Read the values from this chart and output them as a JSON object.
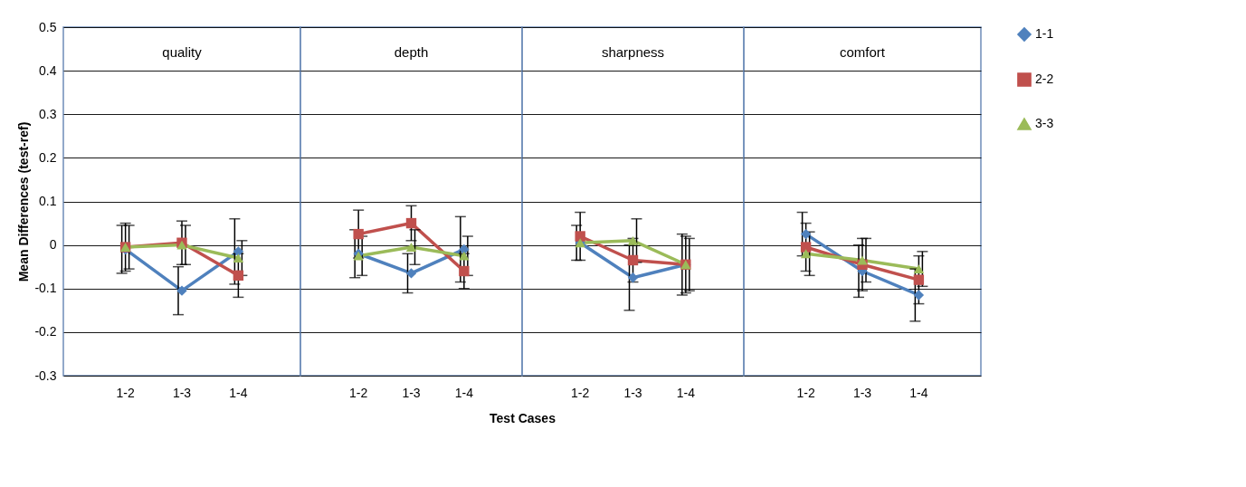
{
  "chart_data": [
    {
      "type": "line",
      "title": "quality",
      "ylabel": "Mean Differences (test-ref)",
      "categories": [
        "1-2",
        "1-3",
        "1-4"
      ],
      "ylim": [
        -0.3,
        0.5
      ],
      "yticks": [
        -0.3,
        -0.2,
        -0.1,
        {
          "value": 0,
          "label": "0"
        },
        0.1,
        0.2,
        0.3,
        0.4,
        0.5
      ],
      "grid": "y",
      "series": [
        {
          "color": "#4f81bd",
          "marker": "diamond",
          "values": [
            -0.01,
            -0.105,
            -0.015
          ],
          "errors": [
            0.055,
            0.055,
            0.075
          ]
        },
        {
          "color": "#c0504d",
          "marker": "square",
          "values": [
            -0.005,
            0.005,
            -0.07
          ],
          "errors": [
            0.055,
            0.05,
            0.05
          ]
        },
        {
          "color": "#9bbb59",
          "marker": "triangle",
          "values": [
            -0.005,
            0,
            -0.03
          ],
          "errors": [
            0.05,
            0.045,
            0.04
          ]
        }
      ]
    },
    {
      "type": "line",
      "title": "depth",
      "xlabel": "Test Cases",
      "categories": [
        "1-2",
        "1-3",
        "1-4"
      ],
      "ylim": [
        -0.3,
        0.5
      ],
      "yticks": [
        -0.3,
        -0.2,
        -0.1,
        0,
        0.1,
        0.2,
        0.3,
        0.4,
        0.5
      ],
      "grid": "y",
      "tick_labels": "x",
      "series": [
        {
          "color": "#4f81bd",
          "marker": "diamond",
          "values": [
            -0.02,
            -0.065,
            -0.01
          ],
          "errors": [
            0.055,
            0.045,
            0.075
          ]
        },
        {
          "color": "#c0504d",
          "marker": "square",
          "values": [
            0.025,
            0.05,
            -0.06
          ],
          "errors": [
            0.055,
            0.04,
            0.04
          ]
        },
        {
          "color": "#9bbb59",
          "marker": "triangle",
          "values": [
            -0.025,
            -0.005,
            -0.025
          ],
          "errors": [
            0.045,
            0.04,
            0.045
          ]
        }
      ]
    },
    {
      "type": "line",
      "title": "sharpness",
      "categories": [
        "1-2",
        "1-3",
        "1-4"
      ],
      "ylim": [
        -0.3,
        0.5
      ],
      "yticks": [
        -0.3,
        -0.2,
        -0.1,
        0,
        0.1,
        0.2,
        0.3,
        0.4,
        0.5
      ],
      "grid": "y",
      "tick_labels": "x",
      "series": [
        {
          "color": "#4f81bd",
          "marker": "diamond",
          "values": [
            0.005,
            -0.075,
            -0.045
          ],
          "errors": [
            0.04,
            0.075,
            0.07
          ]
        },
        {
          "color": "#c0504d",
          "marker": "square",
          "values": [
            0.02,
            -0.035,
            -0.045
          ],
          "errors": [
            0.055,
            0.05,
            0.065
          ]
        },
        {
          "color": "#9bbb59",
          "marker": "triangle",
          "values": [
            0.005,
            0.01,
            -0.045
          ],
          "errors": [
            null,
            0.05,
            0.06
          ]
        }
      ]
    },
    {
      "type": "line",
      "title": "comfort",
      "categories": [
        "1-2",
        "1-3",
        "1-4"
      ],
      "ylim": [
        -0.3,
        0.5
      ],
      "yticks": [
        -0.3,
        -0.2,
        -0.1,
        0,
        0.1,
        0.2,
        0.3,
        0.4,
        0.5
      ],
      "grid": "y",
      "legend": "right",
      "tick_labels": "x",
      "series": [
        {
          "name": "1-1",
          "color": "#4f81bd",
          "marker": "diamond",
          "values": [
            0.025,
            -0.06,
            -0.115
          ],
          "errors": [
            0.05,
            0.06,
            0.06
          ]
        },
        {
          "name": "2-2",
          "color": "#c0504d",
          "marker": "square",
          "values": [
            -0.005,
            -0.045,
            -0.08
          ],
          "errors": [
            0.055,
            0.06,
            0.055
          ]
        },
        {
          "name": "3-3",
          "color": "#9bbb59",
          "marker": "triangle",
          "values": [
            -0.02,
            -0.035,
            -0.055
          ],
          "errors": [
            0.05,
            0.05,
            0.04
          ]
        }
      ]
    }
  ]
}
